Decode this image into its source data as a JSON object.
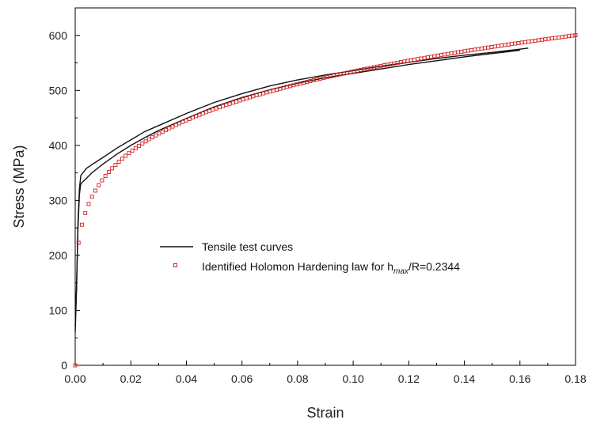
{
  "chart_data": {
    "type": "line",
    "title": "",
    "xlabel": "Strain",
    "ylabel": "Stress (MPa)",
    "xlim": [
      0,
      0.18
    ],
    "ylim": [
      0,
      650
    ],
    "x_ticks": [
      "0.00",
      "0.02",
      "0.04",
      "0.06",
      "0.08",
      "0.10",
      "0.12",
      "0.14",
      "0.16",
      "0.18"
    ],
    "y_ticks": [
      "0",
      "100",
      "200",
      "300",
      "400",
      "500",
      "600"
    ],
    "x_tick_values": [
      0,
      0.02,
      0.04,
      0.06,
      0.08,
      0.1,
      0.12,
      0.14,
      0.16,
      0.18
    ],
    "y_tick_values": [
      0,
      100,
      200,
      300,
      400,
      500,
      600
    ],
    "grid": false,
    "legend_position": "center",
    "legend": {
      "line_label": "Tensile test curves",
      "marker_label_main": "Identified Holomon Hardening law for h",
      "marker_label_sub": "max",
      "marker_label_tail": "/R=0.2344"
    },
    "colors": {
      "tensile": "#111111",
      "holomon": "#d62020"
    },
    "series": [
      {
        "name": "Tensile test curves",
        "style": "line",
        "x": [
          0.0,
          0.0005,
          0.001,
          0.0015,
          0.002,
          0.004,
          0.006,
          0.01,
          0.015,
          0.02,
          0.025,
          0.03,
          0.04,
          0.05,
          0.06,
          0.07,
          0.08,
          0.09,
          0.1,
          0.11,
          0.12,
          0.13,
          0.14,
          0.15,
          0.16,
          0.163
        ],
        "y": [
          60,
          140,
          260,
          320,
          345,
          358,
          365,
          378,
          395,
          410,
          425,
          436,
          458,
          478,
          494,
          508,
          519,
          528,
          536,
          544,
          551,
          558,
          564,
          569,
          575,
          577
        ]
      },
      {
        "name": "Tensile test curves",
        "style": "line",
        "x": [
          0.0,
          0.0005,
          0.001,
          0.0015,
          0.002,
          0.004,
          0.006,
          0.01,
          0.015,
          0.02,
          0.025,
          0.03,
          0.04,
          0.05,
          0.06,
          0.07,
          0.08,
          0.09,
          0.1,
          0.11,
          0.12,
          0.13,
          0.14,
          0.15,
          0.16
        ],
        "y": [
          70,
          150,
          250,
          310,
          330,
          340,
          350,
          366,
          384,
          400,
          414,
          427,
          449,
          470,
          487,
          501,
          513,
          523,
          531,
          539,
          547,
          554,
          561,
          567,
          573
        ]
      },
      {
        "name": "Identified Holomon Hardening law for hmax/R=0.2344",
        "style": "markers",
        "K": 843,
        "n": 0.198,
        "x_start": 0.0,
        "x_end": 0.18,
        "n_points": 150
      }
    ]
  }
}
